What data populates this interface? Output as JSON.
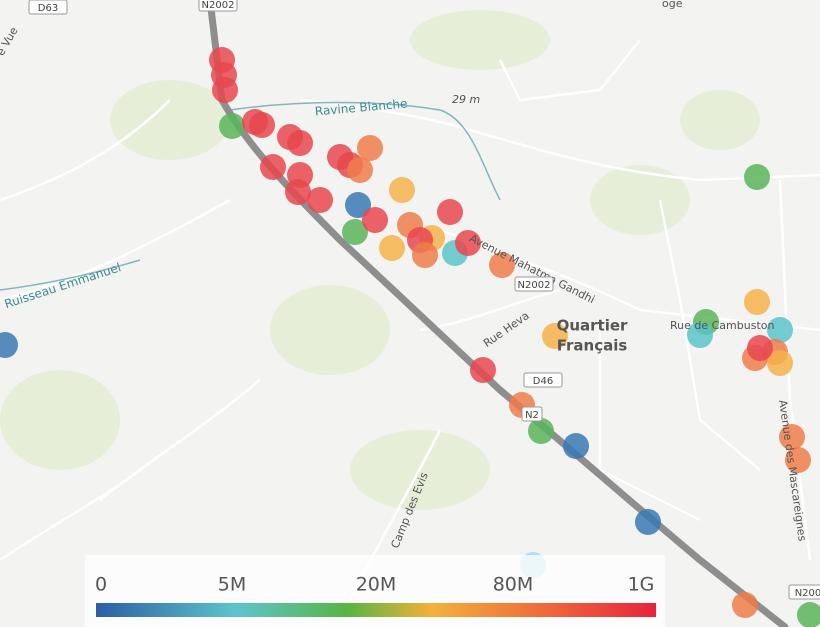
{
  "map": {
    "roads": [
      "D63",
      "N2002",
      "N2002",
      "N2",
      "D46",
      "N200"
    ],
    "places": {
      "ravine": "Ravine Blanche",
      "elevation": "29 m",
      "avenue_gandhi": "Avenue Mahatma Gandhi",
      "rue_heva": "Rue Heva",
      "quartier_1": "Quartier",
      "quartier_2": "Français",
      "cambuston": "Rue de Cambuston",
      "mascareignes": "Avenue des Mascareignes",
      "ruisseau": "Ruisseau Emmanuel",
      "camp": "Camp des Evis",
      "vue": "e Vue",
      "oge": "oge"
    },
    "legend": {
      "labels": [
        "0",
        "5M",
        "20M",
        "80M",
        "1G"
      ]
    }
  }
}
